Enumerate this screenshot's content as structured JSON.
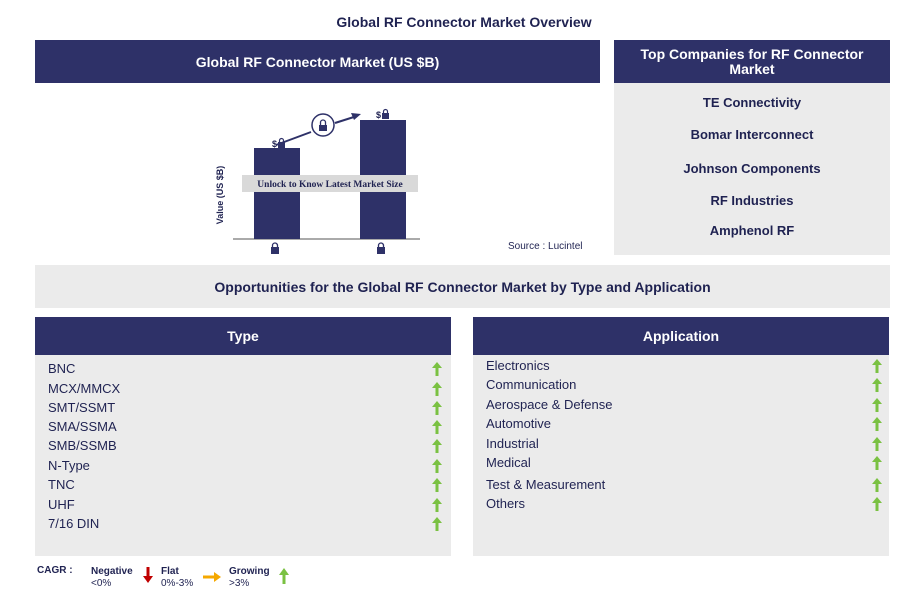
{
  "page_title": "Global RF Connector Market Overview",
  "chart_panel": {
    "header": "Global RF Connector Market (US $B)",
    "ylabel": "Value (US $B)",
    "unlock_text": "Unlock to Know Latest Market Size",
    "bar_value_prefix": "$",
    "source": "Source : Lucintel"
  },
  "companies_panel": {
    "header": "Top Companies for RF Connector Market",
    "companies": [
      "TE Connectivity",
      "Bomar Interconnect",
      "Johnson Components",
      "RF Industries",
      "Amphenol RF"
    ]
  },
  "opportunities_title": "Opportunities for the Global RF Connector Market by Type and Application",
  "type_panel": {
    "header": "Type",
    "items": [
      "BNC",
      "MCX/MMCX",
      "SMT/SSMT",
      "SMA/SSMA",
      "SMB/SSMB",
      "N-Type",
      "TNC",
      "UHF",
      "7/16 DIN"
    ]
  },
  "application_panel": {
    "header": "Application",
    "items": [
      "Electronics",
      "Communication",
      "Aerospace & Defense",
      "Automotive",
      "Industrial",
      "Medical",
      "Test & Measurement",
      "Others"
    ]
  },
  "legend": {
    "label": "CAGR :",
    "negative_label": "Negative",
    "negative_range": "<0%",
    "flat_label": "Flat",
    "flat_range": "0%-3%",
    "growing_label": "Growing",
    "growing_range": ">3%"
  },
  "colors": {
    "navy": "#2e3168",
    "panel_gray": "#ebebeb",
    "growth_green": "#7ac142",
    "negative_red": "#c00000",
    "flat_orange": "#f5a800"
  }
}
